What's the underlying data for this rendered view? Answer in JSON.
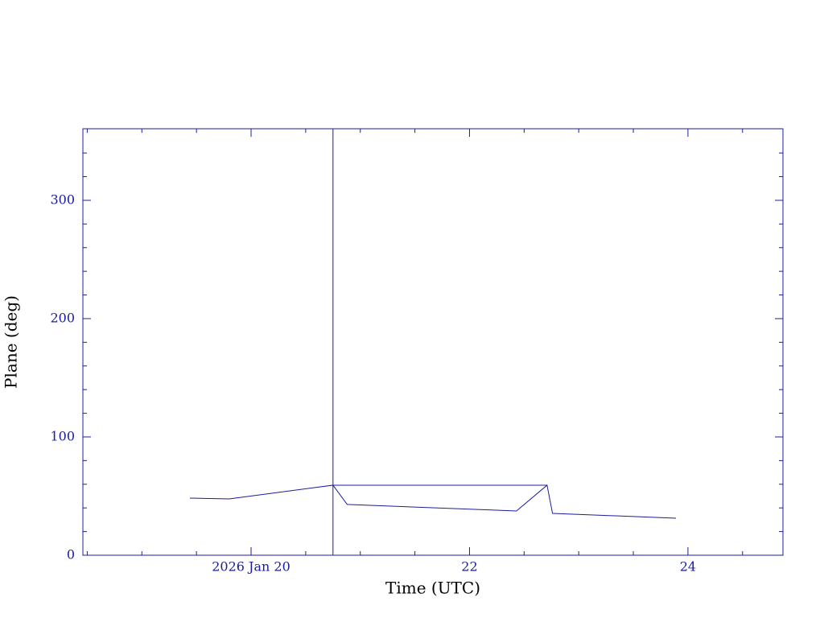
{
  "chart_data": {
    "type": "line",
    "xlabel": "Time (UTC)",
    "ylabel": "Plane (deg)",
    "xlim": [
      18.46,
      24.87
    ],
    "ylim": [
      0,
      360.5
    ],
    "xticks": [
      {
        "value": 20,
        "label": "2026 Jan 20"
      },
      22,
      24
    ],
    "xminorticks": [
      18.5,
      19,
      19.5,
      20.5,
      21,
      21.5,
      22.5,
      23,
      23.5,
      24.5
    ],
    "yticks": [
      0,
      100,
      200,
      300
    ],
    "yminorticks": [
      20,
      40,
      60,
      80,
      120,
      140,
      160,
      180,
      220,
      240,
      260,
      280,
      320,
      340
    ],
    "vlines": [
      20.75
    ],
    "color": "#1c1c9c",
    "series": [
      {
        "color": "#1c1c9c",
        "x": [
          19.44,
          19.8,
          20.75,
          20.88,
          22.43,
          22.71,
          22.76,
          23.89
        ],
        "values": [
          48.3,
          47.6,
          59.2,
          42.9,
          37.4,
          59.2,
          35.4,
          31.3
        ]
      },
      {
        "color": "#1c1c9c",
        "x": [
          20.75,
          22.71
        ],
        "values": [
          59.2,
          59.2
        ]
      }
    ]
  }
}
